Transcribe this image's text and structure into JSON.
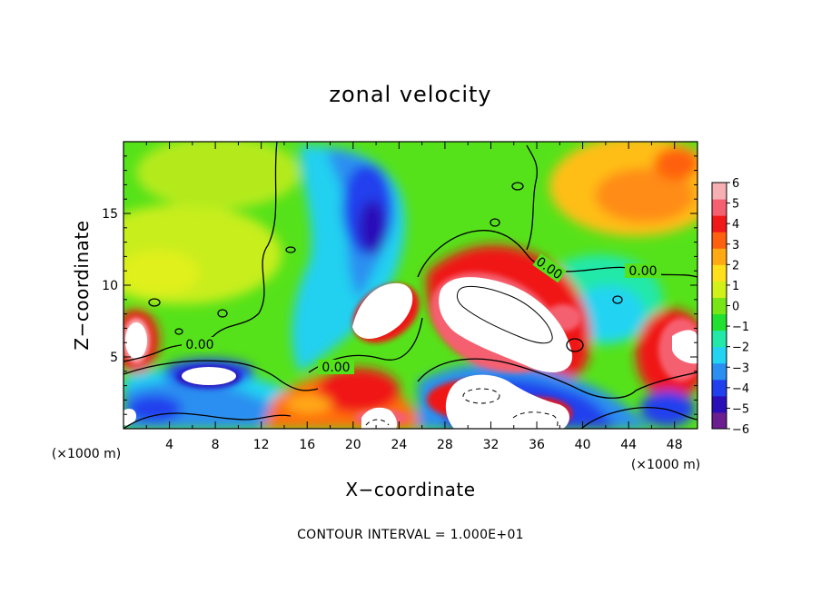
{
  "chart_data": {
    "type": "heatmap",
    "title": "zonal velocity",
    "xlabel": "X−coordinate",
    "ylabel": "Z−coordinate",
    "x_unit_left": "(×1000 m)",
    "x_unit_right": "(×1000 m)",
    "xlim": [
      0,
      50
    ],
    "ylim": [
      0,
      20
    ],
    "x_ticks": [
      "4",
      "8",
      "12",
      "16",
      "20",
      "24",
      "28",
      "32",
      "36",
      "40",
      "44",
      "48"
    ],
    "y_ticks": [
      "5",
      "10",
      "15"
    ],
    "colorbar": {
      "range": [
        -6,
        6
      ],
      "ticks": [
        "6",
        "5",
        "4",
        "3",
        "2",
        "1",
        "0",
        "−1",
        "−2",
        "−3",
        "−4",
        "−5",
        "−6"
      ],
      "colors": [
        "#6a1e8f",
        "#2a0fb8",
        "#2040ee",
        "#2a8ff0",
        "#22d4f2",
        "#22e8a8",
        "#22e030",
        "#78e616",
        "#d2f01a",
        "#ffe01a",
        "#ffaa15",
        "#ff6010",
        "#f01818",
        "#f56070",
        "#f6b0b4"
      ]
    },
    "contour_labels": [
      "0.00",
      "0.00",
      "0.00",
      "0.00"
    ],
    "footer": "CONTOUR INTERVAL = 1.000E+01"
  }
}
